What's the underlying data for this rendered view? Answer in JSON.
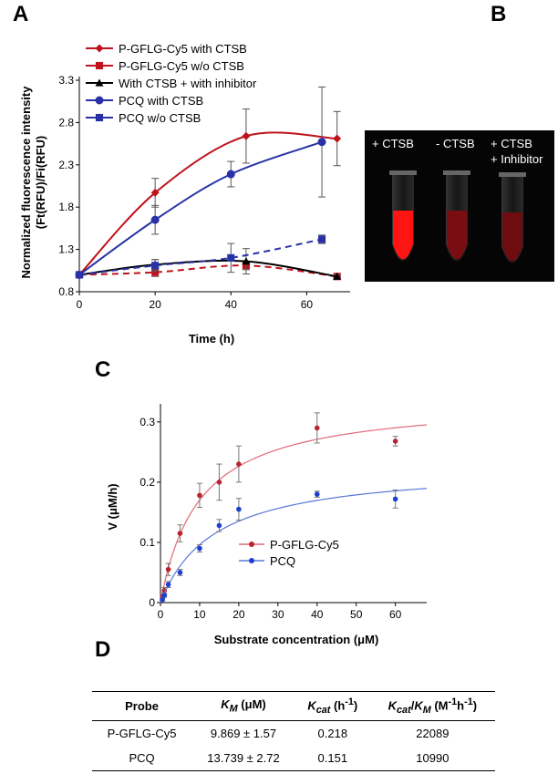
{
  "panels": {
    "a": "A",
    "b": "B",
    "c": "C",
    "d": "D"
  },
  "photo": {
    "labels": [
      "+ CTSB",
      "- CTSB",
      "+ CTSB",
      "+ Inhibitor"
    ]
  },
  "chart_data": [
    {
      "type": "line",
      "id": "A",
      "title": "",
      "xlabel": "Time (h)",
      "ylabel": "Normalized fluorescence intensity",
      "ylabel2": "(Ft(RFU)/Fi(RFU)",
      "xlim": [
        0,
        70
      ],
      "ylim": [
        0.8,
        3.3
      ],
      "xticks": [
        0,
        20,
        40,
        60
      ],
      "yticks": [
        0.8,
        1.3,
        1.8,
        2.3,
        2.8,
        3.3
      ],
      "legend": "top-left",
      "series": [
        {
          "name": "P-GFLG-Cy5 with CTSB",
          "color": "#c0121c",
          "marker": "diamond",
          "dash": false,
          "x": [
            0,
            20,
            44,
            68
          ],
          "y": [
            1.0,
            1.97,
            2.64,
            2.61
          ],
          "err": [
            0.02,
            0.17,
            0.32,
            0.32
          ]
        },
        {
          "name": "P-GFLG-Cy5 w/o CTSB",
          "color": "#c0121c",
          "marker": "square",
          "dash": true,
          "x": [
            0,
            20,
            44,
            68
          ],
          "y": [
            1.0,
            1.03,
            1.11,
            0.98
          ],
          "err": [
            0.02,
            0.05,
            0.05,
            0.02
          ]
        },
        {
          "name": "With CTSB + with inhibitor",
          "color": "#000000",
          "marker": "triangle",
          "dash": false,
          "x": [
            0,
            20,
            44,
            68
          ],
          "y": [
            1.0,
            1.12,
            1.16,
            0.98
          ],
          "err": [
            0.02,
            0.06,
            0.15,
            0.02
          ]
        },
        {
          "name": "PCQ with CTSB",
          "color": "#2832a6",
          "marker": "circle",
          "dash": false,
          "x": [
            0,
            20,
            40,
            64
          ],
          "y": [
            1.0,
            1.65,
            2.19,
            2.57
          ],
          "err": [
            0.02,
            0.17,
            0.15,
            0.65
          ]
        },
        {
          "name": "PCQ w/o CTSB",
          "color": "#2832a6",
          "marker": "square",
          "dash": true,
          "x": [
            0,
            20,
            40,
            64
          ],
          "y": [
            1.0,
            1.11,
            1.2,
            1.42
          ],
          "err": [
            0.02,
            0.07,
            0.17,
            0.05
          ]
        }
      ]
    },
    {
      "type": "scatter",
      "id": "C",
      "title": "",
      "xlabel": "Substrate concentration (μM)",
      "ylabel": "V (μM/h)",
      "xlim": [
        0,
        68
      ],
      "ylim": [
        0,
        0.33
      ],
      "xticks": [
        0,
        10,
        20,
        30,
        40,
        50,
        60
      ],
      "yticks": [
        0,
        0.1,
        0.2,
        0.3
      ],
      "legend": "center",
      "series": [
        {
          "name": "P-GFLG-Cy5",
          "color": "#b8232e",
          "fit_color": "#e06a78",
          "vmax": 0.338,
          "km": 9.869,
          "x": [
            0.5,
            1,
            2,
            5,
            10,
            15,
            20,
            40,
            60
          ],
          "y": [
            0.01,
            0.02,
            0.055,
            0.115,
            0.178,
            0.2,
            0.23,
            0.29,
            0.268
          ],
          "err": [
            0.003,
            0.005,
            0.01,
            0.014,
            0.02,
            0.03,
            0.03,
            0.025,
            0.008
          ]
        },
        {
          "name": "PCQ",
          "color": "#1d3fd0",
          "fit_color": "#5a78d8",
          "vmax": 0.228,
          "km": 13.739,
          "x": [
            0.5,
            1,
            2,
            5,
            10,
            15,
            20,
            40,
            60
          ],
          "y": [
            0.005,
            0.012,
            0.03,
            0.05,
            0.09,
            0.128,
            0.155,
            0.18,
            0.172
          ],
          "err": [
            0.002,
            0.003,
            0.005,
            0.005,
            0.006,
            0.01,
            0.018,
            0.005,
            0.015
          ]
        }
      ]
    },
    {
      "type": "table",
      "id": "D",
      "columns": [
        "Probe",
        "KM (μM)",
        "Kcat (h-1)",
        "Kcat/KM (M-1h-1)"
      ],
      "rows": [
        [
          "P-GFLG-Cy5",
          "9.869 ± 1.57",
          "0.218",
          "22089"
        ],
        [
          "PCQ",
          "13.739 ± 2.72",
          "0.151",
          "10990"
        ]
      ]
    }
  ],
  "table": {
    "head": {
      "probe": "Probe",
      "km_sym": "K",
      "km_sub": "M",
      "km_unit": " (μM)",
      "kcat_sym": "K",
      "kcat_sub": "cat",
      "kcat_unit": " (h",
      "kcat_sup": "-1",
      "kcat_close": ")",
      "ratio_k1": "K",
      "ratio_sub1": "cat",
      "ratio_slash": "/",
      "ratio_k2": "K",
      "ratio_sub2": "M",
      "ratio_unit": " (M",
      "ratio_sup1": "-1",
      "ratio_h": "h",
      "ratio_sup2": "-1",
      "ratio_close": ")"
    }
  }
}
